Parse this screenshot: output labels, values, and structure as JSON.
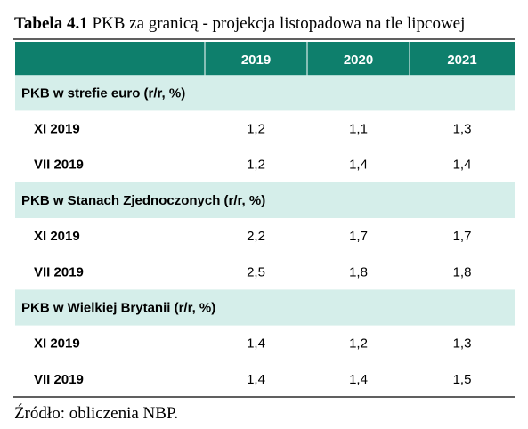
{
  "title": {
    "label": "Tabela 4.1",
    "text": "PKB za granicą - projekcja listopadowa na tle lipcowej"
  },
  "table": {
    "header": [
      "2019",
      "2020",
      "2021"
    ],
    "groups": [
      {
        "label": "PKB w strefie euro (r/r, %)",
        "rows": [
          {
            "label": "XI 2019",
            "values": [
              "1,2",
              "1,1",
              "1,3"
            ]
          },
          {
            "label": "VII 2019",
            "values": [
              "1,2",
              "1,4",
              "1,4"
            ]
          }
        ]
      },
      {
        "label": "PKB w Stanach Zjednoczonych (r/r, %)",
        "rows": [
          {
            "label": "XI 2019",
            "values": [
              "2,2",
              "1,7",
              "1,7"
            ]
          },
          {
            "label": "VII 2019",
            "values": [
              "2,5",
              "1,8",
              "1,8"
            ]
          }
        ]
      },
      {
        "label": "PKB w Wielkiej Brytanii (r/r, %)",
        "rows": [
          {
            "label": "XI 2019",
            "values": [
              "1,4",
              "1,2",
              "1,3"
            ]
          },
          {
            "label": "VII 2019",
            "values": [
              "1,4",
              "1,4",
              "1,5"
            ]
          }
        ]
      }
    ]
  },
  "source": "Źródło: obliczenia NBP."
}
